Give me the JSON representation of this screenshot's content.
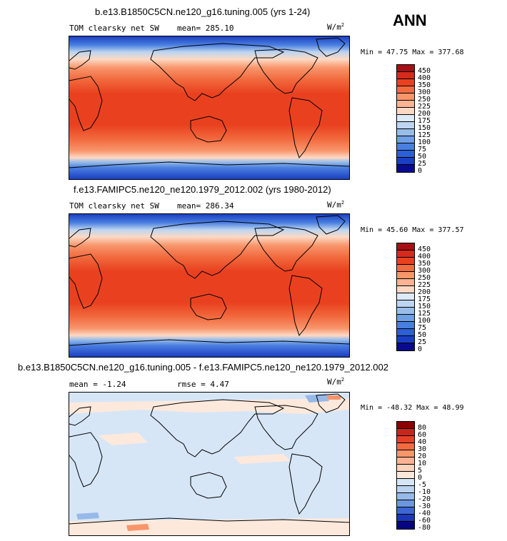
{
  "season": "ANN",
  "panels": [
    {
      "title": "b.e13.B1850C5CN.ne120_g16.tuning.005 (yrs 1-24)",
      "variable": "TOM clearsky net SW",
      "mean_text": "mean= 285.10",
      "units": "W/m",
      "units_sup": "2",
      "minmax_text": "Min =  47.75 Max = 377.68",
      "levels": [
        "450",
        "400",
        "350",
        "300",
        "250",
        "225",
        "200",
        "175",
        "150",
        "125",
        "100",
        "75",
        "50",
        "25",
        "0"
      ],
      "colors": [
        "#a50f15",
        "#d62a1e",
        "#e9411f",
        "#f26a3f",
        "#f8956b",
        "#fbb394",
        "#fdd9c4",
        "#ddeaf7",
        "#bdd5f0",
        "#98bde9",
        "#6f9fe4",
        "#4a7fe0",
        "#2d5fd6",
        "#1b3fc2",
        "#0a0a8f"
      ]
    },
    {
      "title": "f.e13.FAMIPC5.ne120_ne120.1979_2012.002 (yrs 1980-2012)",
      "variable": "TOM clearsky net SW",
      "mean_text": "mean= 286.34",
      "units": "W/m",
      "units_sup": "2",
      "minmax_text": "Min =  45.60 Max = 377.57",
      "levels": [
        "450",
        "400",
        "350",
        "300",
        "250",
        "225",
        "200",
        "175",
        "150",
        "125",
        "100",
        "75",
        "50",
        "25",
        "0"
      ],
      "colors": [
        "#a50f15",
        "#d62a1e",
        "#e9411f",
        "#f26a3f",
        "#f8956b",
        "#fbb394",
        "#fdd9c4",
        "#ddeaf7",
        "#bdd5f0",
        "#98bde9",
        "#6f9fe4",
        "#4a7fe0",
        "#2d5fd6",
        "#1b3fc2",
        "#0a0a8f"
      ]
    },
    {
      "title": "b.e13.B1850C5CN.ne120_g16.tuning.005 - f.e13.FAMIPC5.ne120_ne120.1979_2012.002",
      "mean_text": "mean =  -1.24",
      "rmse_text": "rmse =   4.47",
      "units": "W/m",
      "units_sup": "2",
      "minmax_text": "Min = -48.32 Max =  48.99",
      "levels": [
        "80",
        "60",
        "40",
        "30",
        "20",
        "10",
        "5",
        "0",
        "-5",
        "-10",
        "-20",
        "-30",
        "-40",
        "-60",
        "-80"
      ],
      "colors": [
        "#8b0000",
        "#c8261d",
        "#e6402a",
        "#f26a3f",
        "#f8956b",
        "#fbb394",
        "#fcd3bc",
        "#fde9dc",
        "#d6e6f7",
        "#bcd3f0",
        "#97b9e8",
        "#6d97dd",
        "#3c66d4",
        "#1b36b8",
        "#050580"
      ]
    }
  ],
  "chart_data": [
    {
      "type": "heatmap",
      "title": "b.e13.B1850C5CN.ne120_g16.tuning.005 (yrs 1-24)",
      "subtitle": "TOM clearsky net SW",
      "units": "W/m^2",
      "mean": 285.1,
      "min": 47.75,
      "max": 377.68,
      "contour_levels": [
        0,
        25,
        50,
        75,
        100,
        125,
        150,
        175,
        200,
        225,
        250,
        300,
        350,
        400,
        450
      ]
    },
    {
      "type": "heatmap",
      "title": "f.e13.FAMIPC5.ne120_ne120.1979_2012.002 (yrs 1980-2012)",
      "subtitle": "TOM clearsky net SW",
      "units": "W/m^2",
      "mean": 286.34,
      "min": 45.6,
      "max": 377.57,
      "contour_levels": [
        0,
        25,
        50,
        75,
        100,
        125,
        150,
        175,
        200,
        225,
        250,
        300,
        350,
        400,
        450
      ]
    },
    {
      "type": "heatmap",
      "title": "b.e13.B1850C5CN.ne120_g16.tuning.005 - f.e13.FAMIPC5.ne120_ne120.1979_2012.002",
      "units": "W/m^2",
      "mean": -1.24,
      "rmse": 4.47,
      "min": -48.32,
      "max": 48.99,
      "contour_levels": [
        -80,
        -60,
        -40,
        -30,
        -20,
        -10,
        -5,
        0,
        5,
        10,
        20,
        30,
        40,
        60,
        80
      ]
    }
  ]
}
